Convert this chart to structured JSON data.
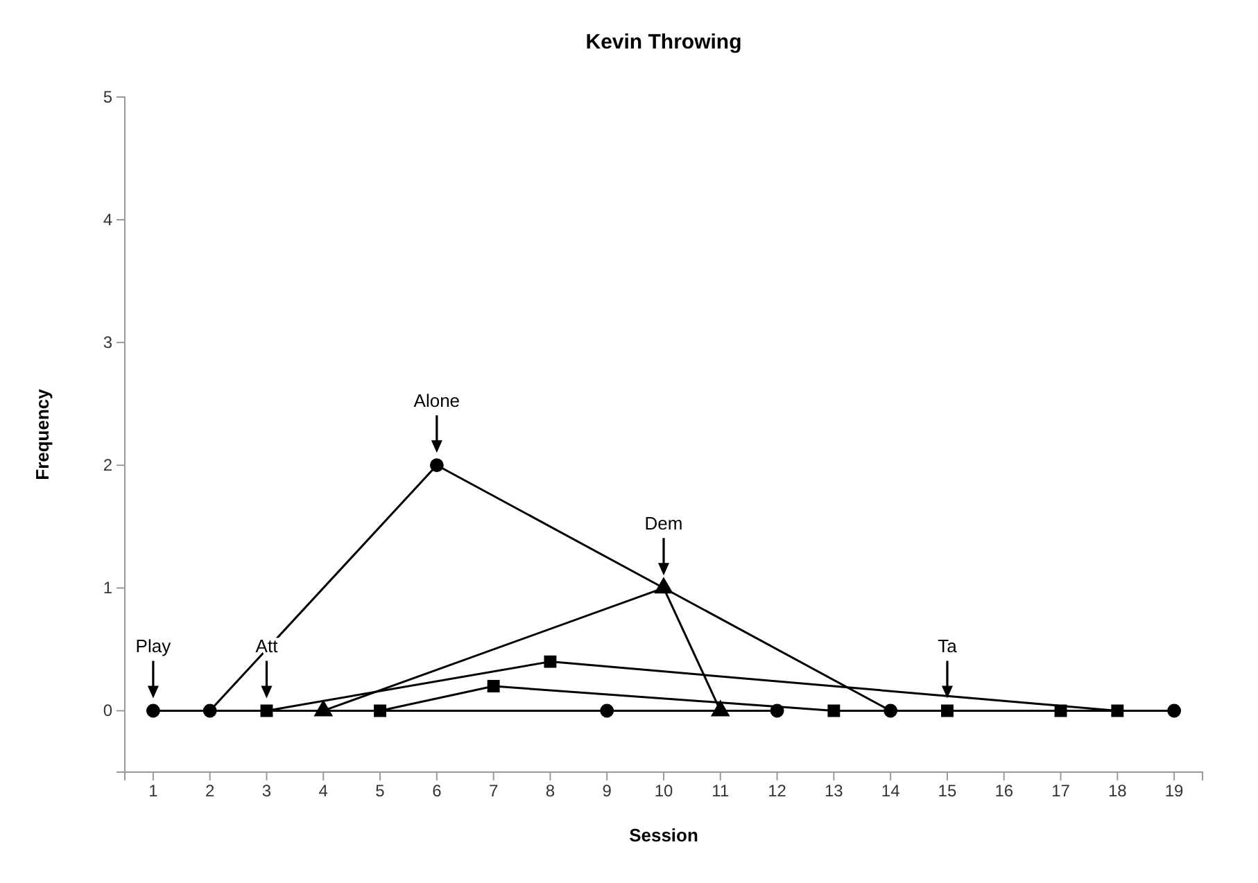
{
  "chart_data": {
    "type": "line",
    "title": "Kevin Throwing",
    "xlabel": "Session",
    "ylabel": "Frequency",
    "xlim": [
      0.5,
      19.5
    ],
    "xticks": [
      1,
      2,
      3,
      4,
      5,
      6,
      7,
      8,
      9,
      10,
      11,
      12,
      13,
      14,
      15,
      16,
      17,
      18,
      19
    ],
    "ylim": [
      -0.5,
      5
    ],
    "yticks": [
      0,
      1,
      2,
      3,
      4,
      5
    ],
    "line_style": "solid",
    "series": [
      {
        "color": "#000000",
        "marker": "circle",
        "x": [
          1,
          9,
          12
        ],
        "values": [
          0,
          0,
          0
        ]
      },
      {
        "color": "#000000",
        "marker": "circle",
        "x": [
          2,
          6,
          14,
          19
        ],
        "values": [
          0,
          2,
          0,
          0
        ]
      },
      {
        "color": "#000000",
        "marker": "square",
        "x": [
          3,
          8,
          18
        ],
        "values": [
          0,
          0.4,
          0
        ]
      },
      {
        "color": "#000000",
        "marker": "triangle",
        "x": [
          4,
          10,
          11
        ],
        "values": [
          0,
          1,
          0
        ]
      },
      {
        "color": "#000000",
        "marker": "square",
        "x": [
          5,
          7,
          13,
          15,
          17
        ],
        "values": [
          0,
          0.2,
          0,
          0,
          0
        ]
      }
    ],
    "annotations": [
      {
        "text": "Play",
        "x": 1,
        "y": 0
      },
      {
        "text": "Att",
        "x": 3,
        "y": 0
      },
      {
        "text": "Alone",
        "x": 6,
        "y": 2
      },
      {
        "text": "Dem",
        "x": 10,
        "y": 1
      },
      {
        "text": "Ta",
        "x": 15,
        "y": 0
      }
    ]
  }
}
